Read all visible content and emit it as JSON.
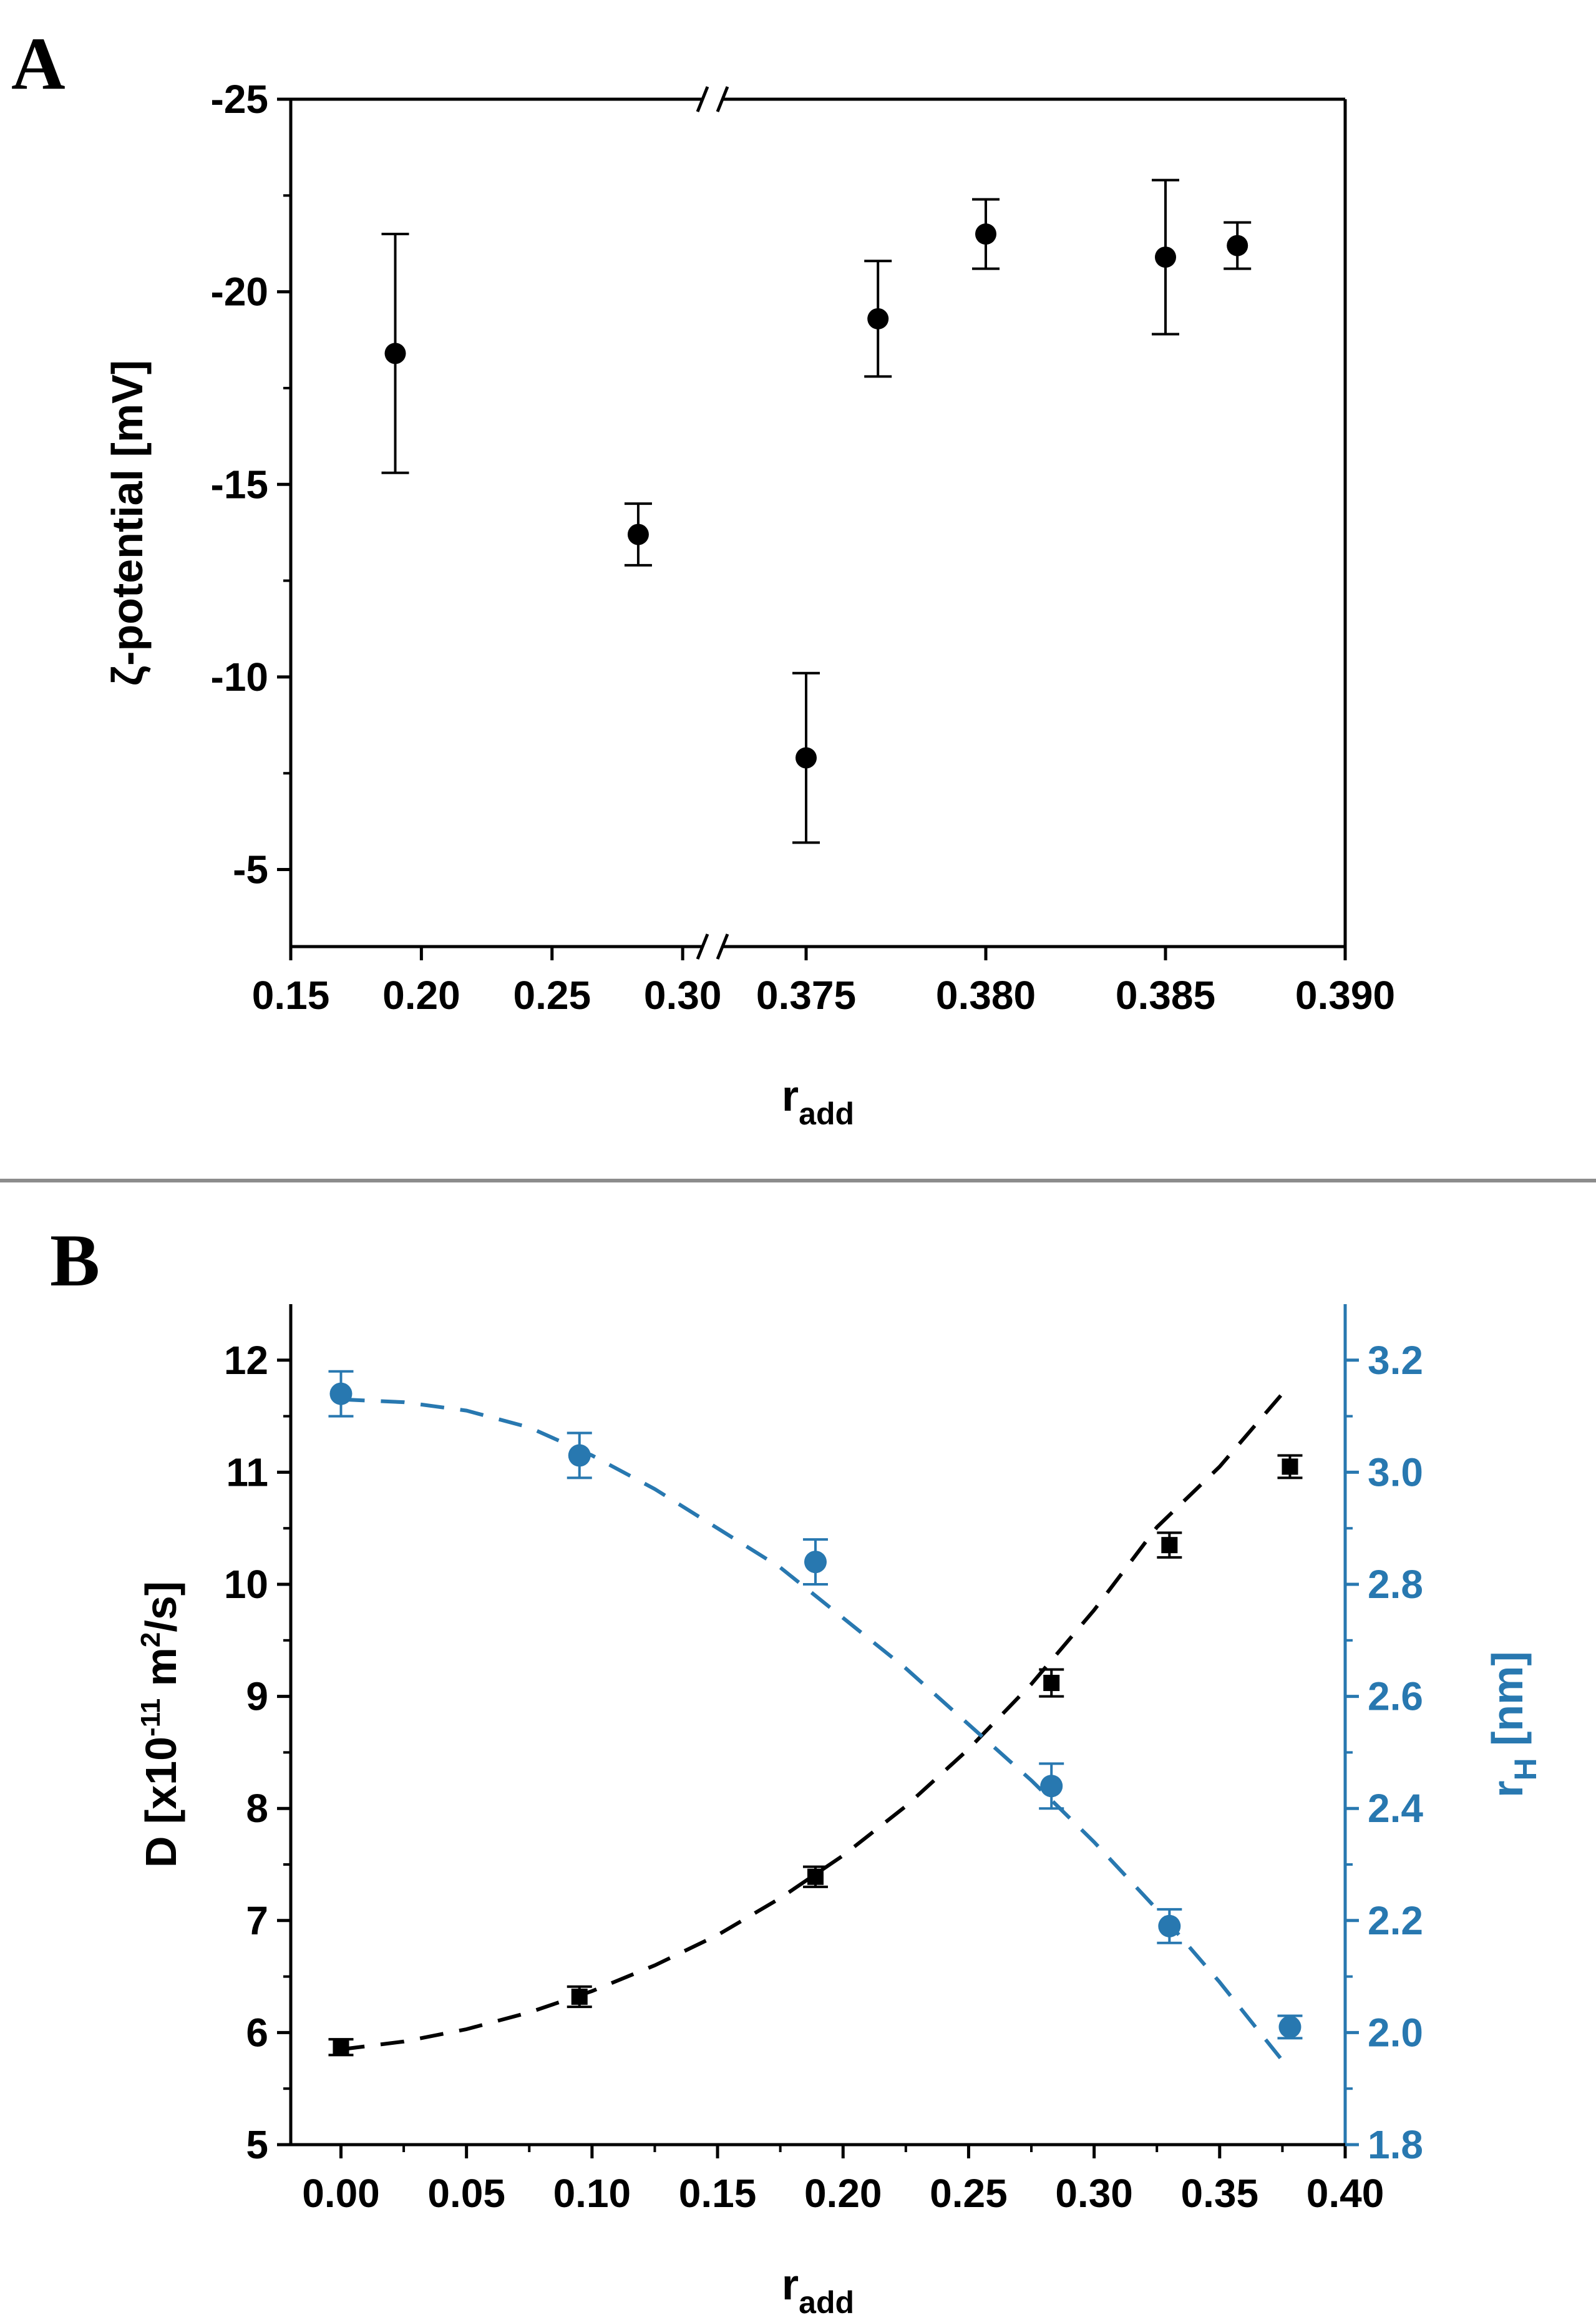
{
  "panels": {
    "a_label": "A",
    "b_label": "B"
  },
  "colors": {
    "black": "#000000",
    "blue": "#2878b0",
    "divider": "#8c8c8c"
  },
  "chart_data": [
    {
      "type": "scatter",
      "title": "",
      "xlabel": "r",
      "xlabel_sub": "add",
      "ylabel": "ζ-potential [mV]",
      "x_break": true,
      "x_segment_1": {
        "range": [
          0.15,
          0.31
        ],
        "ticks": [
          "0.15",
          "0.20",
          "0.25",
          "0.30"
        ],
        "tick_values": [
          0.15,
          0.2,
          0.25,
          0.3
        ]
      },
      "x_segment_2": {
        "range": [
          0.3725,
          0.39
        ],
        "ticks": [
          "0.375",
          "0.380",
          "0.385",
          "0.390"
        ],
        "tick_values": [
          0.375,
          0.38,
          0.385,
          0.39
        ]
      },
      "y_inverted": true,
      "ylim": [
        -25,
        -3
      ],
      "y_ticks": [
        "-25",
        "-20",
        "-15",
        "-10",
        "-5"
      ],
      "y_tick_values": [
        -25,
        -20,
        -15,
        -10,
        -5
      ],
      "series": [
        {
          "name": "zeta",
          "color": "#000000",
          "x": [
            0.19,
            0.283,
            0.375,
            0.377,
            0.38,
            0.385,
            0.387
          ],
          "y": [
            -18.4,
            -13.7,
            -7.9,
            -19.3,
            -21.5,
            -20.9,
            -21.2
          ],
          "err": [
            3.1,
            0.8,
            2.2,
            1.5,
            0.9,
            2.0,
            0.6
          ]
        }
      ]
    },
    {
      "type": "scatter",
      "title": "",
      "xlabel": "r",
      "xlabel_sub": "add",
      "xlim": [
        -0.02,
        0.4
      ],
      "x_ticks": [
        "0.00",
        "0.05",
        "0.10",
        "0.15",
        "0.20",
        "0.25",
        "0.30",
        "0.35",
        "0.40"
      ],
      "x_tick_values": [
        0,
        0.05,
        0.1,
        0.15,
        0.2,
        0.25,
        0.3,
        0.35,
        0.4
      ],
      "left_axis": {
        "label_main": "D [x10",
        "label_sup": "-11",
        "label_mid": " m",
        "label_sup2": "2",
        "label_end": "/s]",
        "ylim": [
          5,
          12.5
        ],
        "ticks": [
          "5",
          "6",
          "7",
          "8",
          "9",
          "10",
          "11",
          "12"
        ],
        "tick_values": [
          5,
          6,
          7,
          8,
          9,
          10,
          11,
          12
        ]
      },
      "right_axis": {
        "label_main": "r",
        "label_sub": "H",
        "label_end": " [nm]",
        "ylim": [
          1.8,
          3.3
        ],
        "ticks": [
          "1.8",
          "2.0",
          "2.2",
          "2.4",
          "2.6",
          "2.8",
          "3.0",
          "3.2"
        ],
        "tick_values": [
          1.8,
          2.0,
          2.2,
          2.4,
          2.6,
          2.8,
          3.0,
          3.2
        ]
      },
      "series": [
        {
          "name": "D",
          "axis": "left",
          "marker": "square",
          "color": "#000000",
          "x": [
            0.0,
            0.095,
            0.189,
            0.283,
            0.33,
            0.378
          ],
          "y": [
            5.87,
            6.32,
            7.39,
            9.12,
            10.35,
            11.05
          ],
          "err": [
            0.07,
            0.09,
            0.09,
            0.12,
            0.11,
            0.1
          ],
          "fit": {
            "x": [
              0.0,
              0.025,
              0.05,
              0.075,
              0.1,
              0.125,
              0.15,
              0.175,
              0.2,
              0.225,
              0.25,
              0.275,
              0.3,
              0.325,
              0.35,
              0.378
            ],
            "y": [
              5.85,
              5.92,
              6.03,
              6.18,
              6.37,
              6.6,
              6.87,
              7.2,
              7.58,
              8.02,
              8.53,
              9.11,
              9.77,
              10.51,
              11.05,
              11.78
            ]
          }
        },
        {
          "name": "rH",
          "axis": "right",
          "marker": "circle",
          "color": "#2878b0",
          "x": [
            0.0,
            0.095,
            0.189,
            0.283,
            0.33,
            0.378
          ],
          "y": [
            3.14,
            3.03,
            2.84,
            2.44,
            2.19,
            2.01
          ],
          "err": [
            0.04,
            0.04,
            0.04,
            0.04,
            0.03,
            0.02
          ],
          "fit": {
            "x": [
              0.0,
              0.025,
              0.05,
              0.075,
              0.1,
              0.125,
              0.15,
              0.175,
              0.2,
              0.225,
              0.25,
              0.275,
              0.3,
              0.325,
              0.35,
              0.375
            ],
            "y": [
              3.13,
              3.125,
              3.11,
              3.08,
              3.03,
              2.97,
              2.9,
              2.83,
              2.74,
              2.65,
              2.55,
              2.45,
              2.34,
              2.22,
              2.09,
              1.95
            ]
          }
        }
      ]
    }
  ]
}
